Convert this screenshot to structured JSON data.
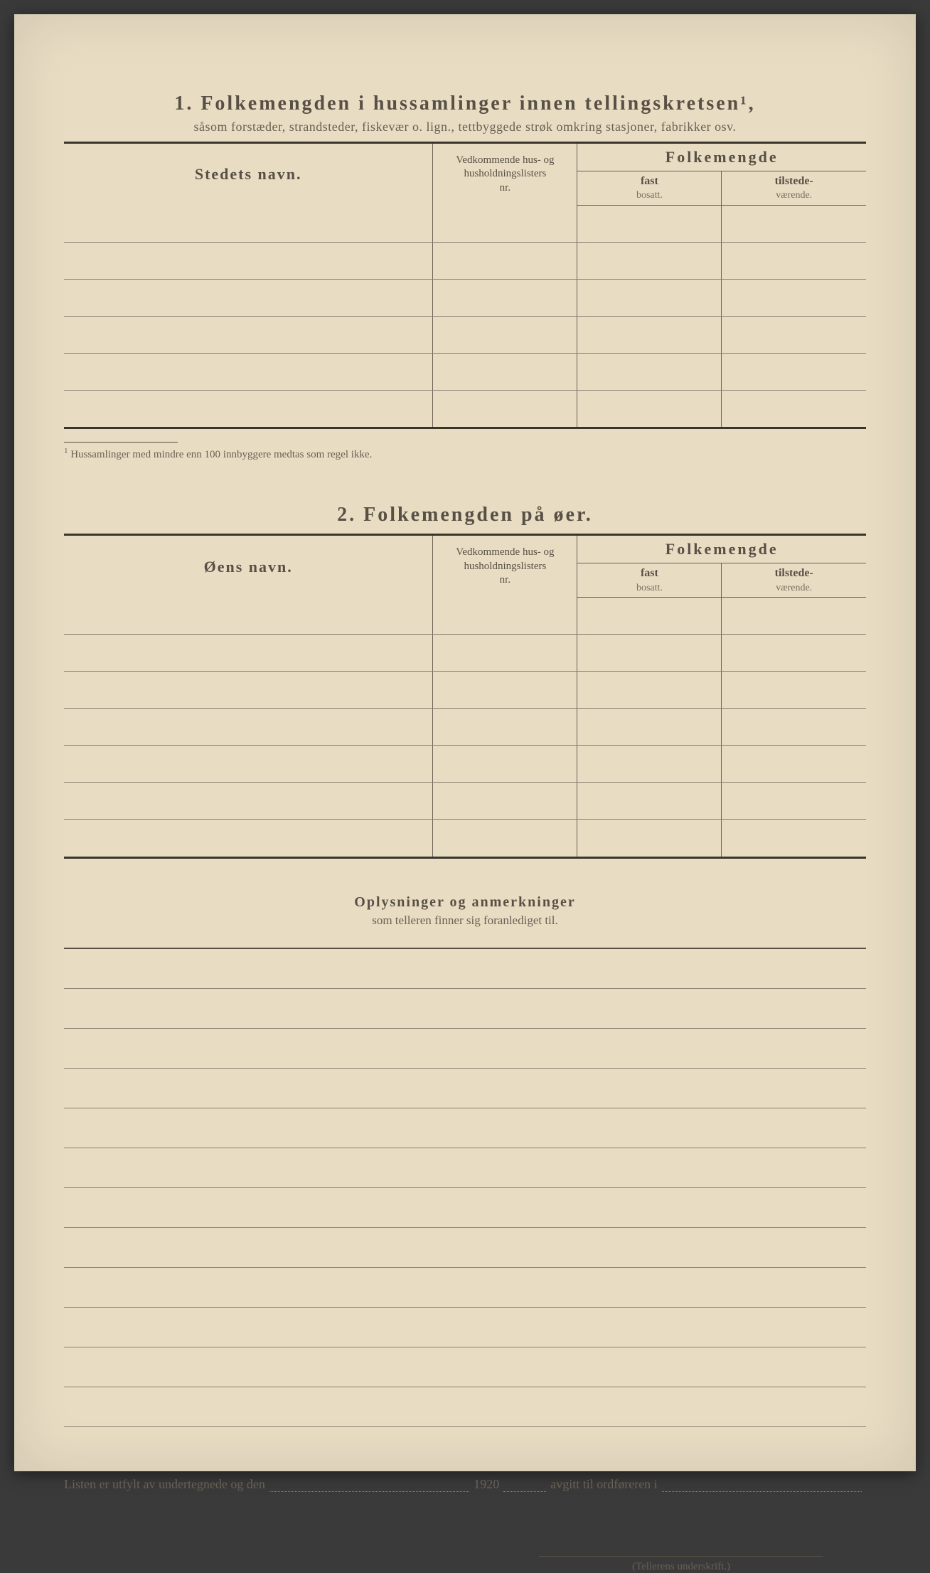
{
  "section1": {
    "number": "1.",
    "title": "Folkemengden i hussamlinger innen tellingskretsen¹,",
    "subtitle": "såsom forstæder, strandsteder, fiskevær o. lign., tettbyggede strøk omkring stasjoner, fabrikker osv.",
    "col_name": "Stedets navn.",
    "col_ref_line1": "Vedkommende hus- og",
    "col_ref_line2": "husholdningslisters",
    "col_ref_line3": "nr.",
    "col_group": "Folkemengde",
    "col_fast_bold": "fast",
    "col_fast_sub": "bosatt.",
    "col_til_bold": "tilstede-",
    "col_til_sub": "værende.",
    "row_count": 6,
    "footnote": "Hussamlinger med mindre enn 100 innbyggere medtas som regel ikke.",
    "footnote_marker": "1"
  },
  "section2": {
    "number": "2.",
    "title": "Folkemengden på øer.",
    "col_name": "Øens navn.",
    "col_ref_line1": "Vedkommende hus- og",
    "col_ref_line2": "husholdningslisters",
    "col_ref_line3": "nr.",
    "col_group": "Folkemengde",
    "col_fast_bold": "fast",
    "col_fast_sub": "bosatt.",
    "col_til_bold": "tilstede-",
    "col_til_sub": "værende.",
    "row_count": 7
  },
  "remarks": {
    "title": "Oplysninger og anmerkninger",
    "subtitle": "som telleren finner sig foranlediget til.",
    "line_count": 12
  },
  "footer": {
    "text_a": "Listen er utfylt av undertegnede og den",
    "text_b": "1920",
    "text_c": "avgitt til ordføreren i",
    "signature_label": "(Tellerens underskrift.)"
  },
  "colors": {
    "paper": "#e8dcc3",
    "ink_dark": "#3a342c",
    "ink_medium": "#585045",
    "ink_light": "#6a6055",
    "rule_light": "#8a8070"
  }
}
